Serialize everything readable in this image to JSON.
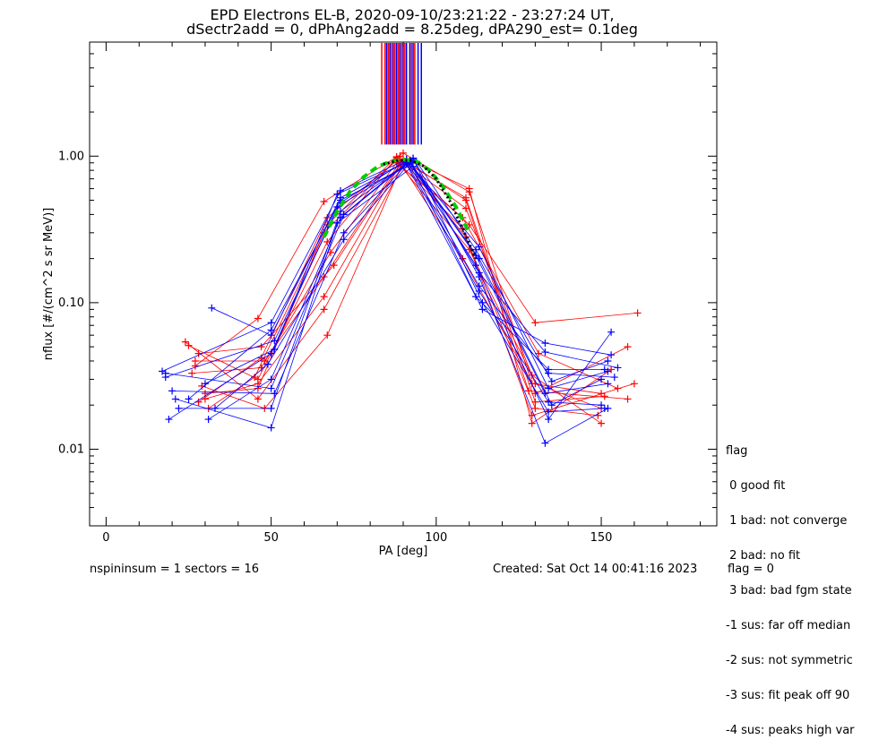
{
  "title_line1": "EPD Electrons EL-B, 2020-09-10/23:21:22 - 23:27:24 UT,",
  "title_line2": "dSectr2add = 0, dPhAng2add = 8.25deg, dPA290_est=   0.1deg",
  "footer": {
    "left": "nspininsum =  1  sectors = 16",
    "created": "Created: Sat Oct 14 00:41:16 2023",
    "flag": "flag = 0"
  },
  "legend": {
    "title": "flag",
    "items": [
      " 0 good fit",
      " 1 bad: not converge",
      " 2 bad: no fit",
      " 3 bad: bad fgm state",
      "-1 sus: far off median",
      "-2 sus: not symmetric",
      "-3 sus: fit peak off 90",
      "-4 sus: peaks high var"
    ]
  },
  "colors": {
    "red": "#ff0000",
    "blue": "#0000ff",
    "green": "#00cc00",
    "black": "#000000"
  },
  "chart_data": {
    "type": "line",
    "xlabel": "PA [deg]",
    "ylabel": "nflux [#/(cm^2 s sr MeV)]",
    "xlim": [
      -5,
      185
    ],
    "ylim": [
      0.003,
      6
    ],
    "ylog": true,
    "xticks": [
      0,
      50,
      100,
      150
    ],
    "xtick_labels": [
      "0",
      "50",
      "100",
      "150"
    ],
    "yticks": [
      0.01,
      0.1,
      1.0
    ],
    "ytick_labels": [
      "0.01",
      "0.10",
      "1.00"
    ],
    "vertical_lines": {
      "y_from": 1.2,
      "red": [
        83.5,
        84.5,
        85.5,
        86.5,
        87.5,
        88.5,
        89.5,
        90.5,
        92.5,
        93.5
      ],
      "blue": [
        85,
        86,
        87,
        88,
        89,
        90,
        91,
        92,
        93,
        94.5,
        95.5
      ]
    },
    "series": [
      {
        "color": "red",
        "x": [
          25,
          46,
          67,
          88,
          109,
          130,
          150
        ],
        "y": [
          0.051,
          0.03,
          0.26,
          0.98,
          0.44,
          0.028,
          0.019
        ]
      },
      {
        "color": "red",
        "x": [
          27,
          46,
          66,
          90,
          110,
          130,
          158
        ],
        "y": [
          0.037,
          0.078,
          0.49,
          1.05,
          0.57,
          0.024,
          0.05
        ]
      },
      {
        "color": "red",
        "x": [
          28,
          47,
          67,
          88,
          108,
          129,
          160
        ],
        "y": [
          0.021,
          0.042,
          0.38,
          0.93,
          0.32,
          0.017,
          0.028
        ]
      },
      {
        "color": "red",
        "x": [
          30,
          46,
          66,
          89,
          110,
          129,
          150
        ],
        "y": [
          0.022,
          0.028,
          0.11,
          0.87,
          0.23,
          0.032,
          0.015
        ]
      },
      {
        "color": "red",
        "x": [
          29,
          48,
          67,
          90,
          109,
          130,
          151
        ],
        "y": [
          0.027,
          0.019,
          0.06,
          0.92,
          0.52,
          0.021,
          0.023
        ]
      },
      {
        "color": "red",
        "x": [
          26,
          47,
          68,
          88,
          108,
          131,
          155
        ],
        "y": [
          0.033,
          0.036,
          0.22,
          0.9,
          0.38,
          0.045,
          0.026
        ]
      },
      {
        "color": "red",
        "x": [
          24,
          46,
          66,
          91,
          110,
          129,
          153
        ],
        "y": [
          0.054,
          0.022,
          0.09,
          0.96,
          0.6,
          0.015,
          0.035
        ]
      },
      {
        "color": "red",
        "x": [
          31,
          45,
          66,
          89,
          109,
          130,
          149
        ],
        "y": [
          0.019,
          0.031,
          0.3,
          1.0,
          0.28,
          0.019,
          0.017
        ]
      },
      {
        "color": "red",
        "x": [
          28,
          47,
          69,
          90,
          109,
          128,
          158
        ],
        "y": [
          0.045,
          0.05,
          0.18,
          0.95,
          0.5,
          0.025,
          0.022
        ]
      },
      {
        "color": "red",
        "x": [
          30,
          46,
          67,
          88,
          110,
          130,
          161
        ],
        "y": [
          0.024,
          0.026,
          0.34,
          0.99,
          0.34,
          0.073,
          0.085
        ]
      },
      {
        "color": "red",
        "x": [
          27,
          48,
          66,
          89,
          108,
          129,
          150
        ],
        "y": [
          0.04,
          0.04,
          0.15,
          0.91,
          0.2,
          0.028,
          0.024
        ]
      },
      {
        "color": "blue",
        "x": [
          17,
          50,
          71,
          91,
          113,
          134,
          152
        ],
        "y": [
          0.034,
          0.073,
          0.58,
          0.95,
          0.24,
          0.026,
          0.034
        ]
      },
      {
        "color": "blue",
        "x": [
          19,
          50,
          70,
          92,
          112,
          134,
          153
        ],
        "y": [
          0.016,
          0.045,
          0.45,
          0.9,
          0.18,
          0.016,
          0.063
        ]
      },
      {
        "color": "blue",
        "x": [
          32,
          50,
          71,
          93,
          113,
          133,
          152
        ],
        "y": [
          0.092,
          0.06,
          0.52,
          0.97,
          0.15,
          0.011,
          0.019
        ]
      },
      {
        "color": "blue",
        "x": [
          20,
          51,
          72,
          91,
          112,
          134,
          151
        ],
        "y": [
          0.025,
          0.024,
          0.3,
          0.88,
          0.11,
          0.035,
          0.035
        ]
      },
      {
        "color": "blue",
        "x": [
          31,
          50,
          71,
          92,
          114,
          133,
          153
        ],
        "y": [
          0.016,
          0.03,
          0.38,
          0.92,
          0.09,
          0.053,
          0.044
        ]
      },
      {
        "color": "blue",
        "x": [
          21,
          50,
          70,
          93,
          113,
          135,
          150
        ],
        "y": [
          0.022,
          0.014,
          0.35,
          0.85,
          0.2,
          0.02,
          0.03
        ]
      },
      {
        "color": "blue",
        "x": [
          18,
          51,
          71,
          91,
          113,
          134,
          154
        ],
        "y": [
          0.031,
          0.055,
          0.48,
          0.94,
          0.13,
          0.033,
          0.031
        ]
      },
      {
        "color": "blue",
        "x": [
          33,
          49,
          72,
          92,
          112,
          133,
          152
        ],
        "y": [
          0.019,
          0.038,
          0.27,
          0.9,
          0.21,
          0.024,
          0.028
        ]
      },
      {
        "color": "blue",
        "x": [
          22,
          50,
          71,
          93,
          114,
          134,
          151
        ],
        "y": [
          0.019,
          0.019,
          0.42,
          0.96,
          0.1,
          0.018,
          0.019
        ]
      },
      {
        "color": "blue",
        "x": [
          30,
          51,
          70,
          92,
          113,
          133,
          155
        ],
        "y": [
          0.028,
          0.048,
          0.55,
          0.93,
          0.16,
          0.046,
          0.036
        ]
      },
      {
        "color": "blue",
        "x": [
          18,
          50,
          72,
          91,
          113,
          134,
          150
        ],
        "y": [
          0.033,
          0.026,
          0.4,
          0.9,
          0.12,
          0.021,
          0.02
        ]
      },
      {
        "color": "blue",
        "x": [
          25,
          50,
          71,
          94,
          112,
          135,
          152
        ],
        "y": [
          0.022,
          0.065,
          0.5,
          0.92,
          0.23,
          0.029,
          0.04
        ]
      }
    ],
    "fit_curves": [
      {
        "color": "green",
        "style": "dashed",
        "x": [
          66,
          70,
          74,
          78,
          82,
          86,
          90,
          94,
          98,
          102,
          106,
          110
        ],
        "y": [
          0.28,
          0.42,
          0.58,
          0.72,
          0.84,
          0.92,
          0.95,
          0.92,
          0.8,
          0.62,
          0.45,
          0.3
        ]
      },
      {
        "color": "black",
        "style": "dotted",
        "x": [
          84,
          88,
          92,
          96,
          100,
          104,
          108,
          112
        ],
        "y": [
          0.88,
          0.93,
          0.94,
          0.86,
          0.7,
          0.5,
          0.32,
          0.2
        ]
      }
    ]
  }
}
